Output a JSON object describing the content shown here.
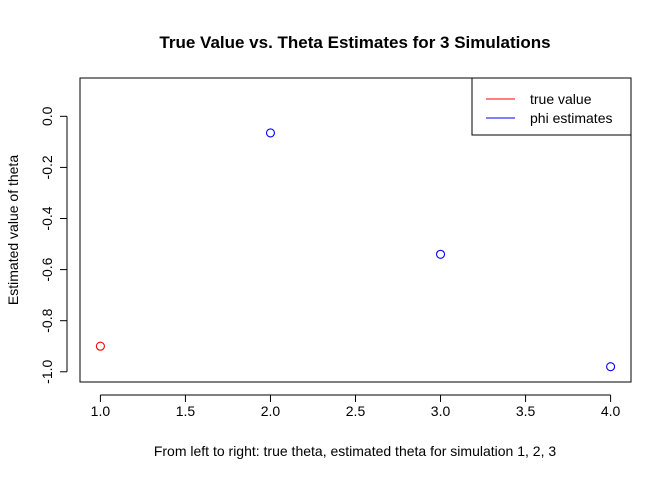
{
  "chart_data": {
    "type": "scatter",
    "title": "True Value vs. Theta Estimates for 3 Simulations",
    "xlabel": "From left to right: true theta, estimated theta for simulation 1, 2, 3",
    "ylabel": "Estimated value of theta",
    "xlim": [
      0.88,
      4.12
    ],
    "ylim": [
      -1.04,
      0.15
    ],
    "x_ticks": [
      "1.0",
      "1.5",
      "2.0",
      "2.5",
      "3.0",
      "3.5",
      "4.0"
    ],
    "y_ticks": [
      "0.0",
      "-0.2",
      "-0.4",
      "-0.6",
      "-0.8",
      "-1.0"
    ],
    "grid": false,
    "series": [
      {
        "name": "true value",
        "color": "#ff0000",
        "x": [
          1
        ],
        "y": [
          -0.9
        ]
      },
      {
        "name": "phi estimates",
        "color": "#0000ff",
        "x": [
          2,
          3,
          4
        ],
        "y": [
          -0.065,
          -0.54,
          -0.98
        ]
      }
    ],
    "legend": {
      "position": "top-right",
      "entries": [
        "true value",
        "phi estimates"
      ]
    }
  }
}
